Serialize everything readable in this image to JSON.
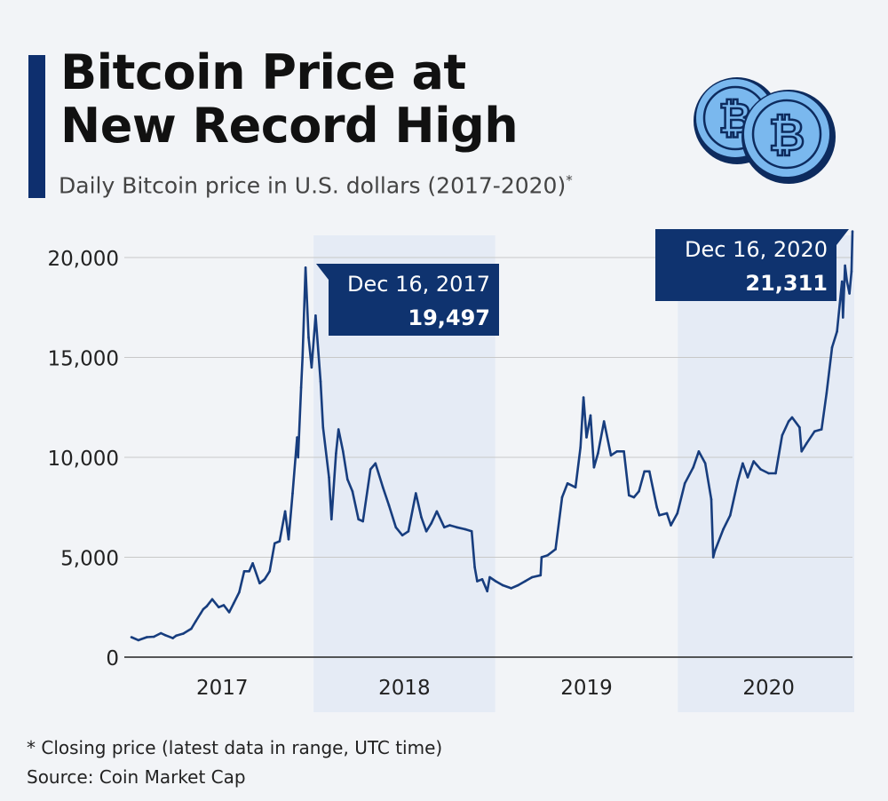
{
  "header": {
    "title_line1": "Bitcoin Price at",
    "title_line2": "New Record High",
    "subtitle": "Daily Bitcoin price in U.S. dollars (2017-2020)",
    "subtitle_marker": "*"
  },
  "footer": {
    "note": "* Closing price (latest data in range, UTC time)",
    "source": "Source: Coin Market Cap"
  },
  "colors": {
    "line": "#173d7e",
    "callout": "#0f336f",
    "accent": "#0e2f6e",
    "shade": "#e5ebf5",
    "coin": "#7ab8ee",
    "grid": "#c8c8c8",
    "axis": "#222222"
  },
  "icons": [
    "bitcoin-coin-icon",
    "bitcoin-coin-icon"
  ],
  "chart_data": {
    "type": "line",
    "x_axis": {
      "min": "2017-01-01",
      "max": "2020-12-16",
      "tick_labels": [
        "2017",
        "2018",
        "2019",
        "2020"
      ],
      "tick_dates": [
        "2017-07-02",
        "2018-07-02",
        "2019-07-02",
        "2020-07-01"
      ]
    },
    "y_axis": {
      "min": 0,
      "max": 20000,
      "ticks": [
        0,
        5000,
        10000,
        15000,
        20000
      ],
      "tick_labels": [
        "0",
        "5,000",
        "10,000",
        "15,000",
        "20,000"
      ]
    },
    "grid": true,
    "shaded_years": [
      {
        "start": "2018-01-01",
        "end": "2018-12-31"
      },
      {
        "start": "2020-01-01",
        "end": "2020-12-31"
      }
    ],
    "annotations": [
      {
        "date_label": "Dec 16, 2017",
        "value_label": "19,497",
        "x": "2017-12-16",
        "y": 19497
      },
      {
        "date_label": "Dec 16, 2020",
        "value_label": "21,311",
        "x": "2020-12-16",
        "y": 21311
      }
    ],
    "series": [
      {
        "x": [
          "2017-01-01",
          "2017-01-15",
          "2017-02-01",
          "2017-02-15",
          "2017-03-01",
          "2017-03-10",
          "2017-03-25",
          "2017-04-01",
          "2017-04-15",
          "2017-05-01",
          "2017-05-10",
          "2017-05-20",
          "2017-05-25",
          "2017-06-01",
          "2017-06-12",
          "2017-06-25",
          "2017-07-05",
          "2017-07-16",
          "2017-07-25",
          "2017-08-05",
          "2017-08-15",
          "2017-08-25",
          "2017-09-01",
          "2017-09-15",
          "2017-09-25",
          "2017-10-05",
          "2017-10-15",
          "2017-10-25",
          "2017-11-05",
          "2017-11-12",
          "2017-11-20",
          "2017-11-29",
          "2017-12-01",
          "2017-12-07",
          "2017-12-10",
          "2017-12-16",
          "2017-12-22",
          "2017-12-28",
          "2018-01-05",
          "2018-01-15",
          "2018-01-20",
          "2018-02-01",
          "2018-02-06",
          "2018-02-15",
          "2018-02-20",
          "2018-03-01",
          "2018-03-10",
          "2018-03-20",
          "2018-04-01",
          "2018-04-10",
          "2018-04-25",
          "2018-05-05",
          "2018-05-20",
          "2018-06-01",
          "2018-06-15",
          "2018-06-28",
          "2018-07-10",
          "2018-07-25",
          "2018-08-05",
          "2018-08-15",
          "2018-08-25",
          "2018-09-05",
          "2018-09-20",
          "2018-10-01",
          "2018-10-15",
          "2018-11-01",
          "2018-11-14",
          "2018-11-20",
          "2018-11-25",
          "2018-12-05",
          "2018-12-15",
          "2018-12-20",
          "2019-01-01",
          "2019-01-15",
          "2019-02-01",
          "2019-02-15",
          "2019-03-01",
          "2019-03-15",
          "2019-04-01",
          "2019-04-03",
          "2019-04-15",
          "2019-05-01",
          "2019-05-14",
          "2019-05-25",
          "2019-06-10",
          "2019-06-20",
          "2019-06-26",
          "2019-07-02",
          "2019-07-10",
          "2019-07-17",
          "2019-07-25",
          "2019-08-06",
          "2019-08-20",
          "2019-09-01",
          "2019-09-15",
          "2019-09-25",
          "2019-10-05",
          "2019-10-15",
          "2019-10-26",
          "2019-11-05",
          "2019-11-20",
          "2019-11-25",
          "2019-12-10",
          "2019-12-18",
          "2019-12-31",
          "2020-01-15",
          "2020-02-01",
          "2020-02-12",
          "2020-02-25",
          "2020-03-08",
          "2020-03-12",
          "2020-03-15",
          "2020-04-01",
          "2020-04-15",
          "2020-04-30",
          "2020-05-10",
          "2020-05-20",
          "2020-06-01",
          "2020-06-15",
          "2020-07-01",
          "2020-07-15",
          "2020-07-28",
          "2020-08-10",
          "2020-08-17",
          "2020-09-01",
          "2020-09-05",
          "2020-09-15",
          "2020-10-01",
          "2020-10-15",
          "2020-10-25",
          "2020-11-05",
          "2020-11-15",
          "2020-11-25",
          "2020-11-27",
          "2020-12-01",
          "2020-12-05",
          "2020-12-10",
          "2020-12-14",
          "2020-12-16"
        ],
        "y": [
          1000,
          850,
          1000,
          1020,
          1200,
          1100,
          950,
          1080,
          1180,
          1420,
          1800,
          2200,
          2400,
          2550,
          2900,
          2500,
          2600,
          2250,
          2700,
          3250,
          4300,
          4300,
          4700,
          3700,
          3900,
          4300,
          5700,
          5800,
          7300,
          5900,
          8200,
          11000,
          10000,
          13500,
          15000,
          19497,
          16000,
          14500,
          17100,
          13800,
          11500,
          9000,
          6900,
          10200,
          11400,
          10300,
          8900,
          8300,
          6900,
          6800,
          9400,
          9700,
          8500,
          7600,
          6500,
          6100,
          6300,
          8200,
          7000,
          6300,
          6700,
          7300,
          6500,
          6600,
          6500,
          6400,
          6300,
          4500,
          3800,
          3900,
          3300,
          4000,
          3800,
          3600,
          3450,
          3600,
          3800,
          4000,
          4100,
          5000,
          5100,
          5400,
          8000,
          8700,
          8500,
          10500,
          13000,
          11000,
          12100,
          9500,
          10200,
          11800,
          10100,
          10300,
          10300,
          8100,
          8000,
          8300,
          9300,
          9300,
          7500,
          7100,
          7200,
          6600,
          7200,
          8700,
          9500,
          10300,
          9700,
          7900,
          5000,
          5300,
          6400,
          7100,
          8800,
          9700,
          9000,
          9800,
          9400,
          9200,
          9200,
          11100,
          11800,
          12000,
          11500,
          10300,
          10700,
          11300,
          11400,
          13200,
          15500,
          16300,
          18800,
          17000,
          19600,
          18800,
          18200,
          19300,
          21311
        ]
      }
    ]
  }
}
